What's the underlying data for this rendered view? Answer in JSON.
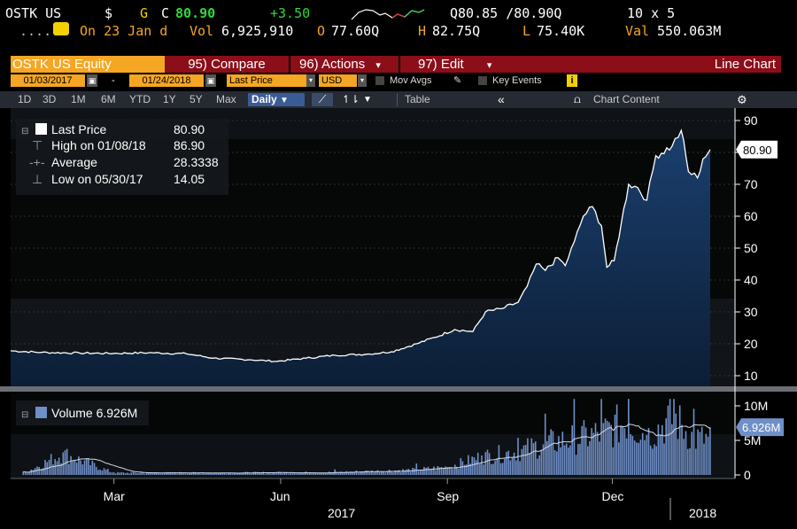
{
  "quote": {
    "ticker": "OSTK US",
    "currency": "$",
    "flag": "G",
    "close_label": "C",
    "close": "80.90",
    "change": "+3.50",
    "bid_ask": "Q80.85 /80.90Q",
    "size": "10 x 5"
  },
  "stats": {
    "prefix": ".....",
    "on_label": "On 23 Jan d",
    "vol_label": "Vol",
    "vol": "6,925,910",
    "open_label": "O",
    "open": "77.60Q",
    "high_label": "H",
    "high": "82.75Q",
    "low_label": "L",
    "low": "75.40K",
    "val_label": "Val",
    "val": "550.063M"
  },
  "menu": {
    "security": "OSTK US Equity",
    "compare": "95) Compare",
    "actions": "96) Actions",
    "edit": "97) Edit",
    "chart_type": "Line Chart"
  },
  "controls": {
    "start_date": "01/03/2017",
    "end_date": "01/24/2018",
    "dash": "-",
    "field": "Last Price",
    "currency": "USD",
    "mov_avgs": "Mov Avgs",
    "key_events": "Key Events"
  },
  "ranges": {
    "items": [
      "1D",
      "3D",
      "1M",
      "6M",
      "YTD",
      "1Y",
      "5Y",
      "Max"
    ],
    "period": "Daily",
    "table": "Table",
    "chart_content": "Chart Content"
  },
  "legend": {
    "last_price_label": "Last Price",
    "last_price_value": "80.90",
    "high_label": "High on 01/08/18",
    "high_value": "86.90",
    "average_label": "Average",
    "average_value": "28.3338",
    "low_label": "Low on 05/30/17",
    "low_value": "14.05",
    "volume_label": "Volume 6.926M"
  },
  "colors": {
    "accent_orange": "#f5a623",
    "menu_red": "#8b0e19",
    "price_line": "#ffffff",
    "volume_bar": "#6f8fc8",
    "change_green": "#2ed93a"
  },
  "chart_data": {
    "type": "line",
    "price": {
      "y_ticks": [
        10,
        20,
        30,
        40,
        50,
        60,
        70,
        80,
        90
      ],
      "last_label": "80.90",
      "points": [
        [
          "2017-01-03",
          17.8
        ],
        [
          "2017-01-20",
          17.3
        ],
        [
          "2017-02-10",
          17.1
        ],
        [
          "2017-03-01",
          17.0
        ],
        [
          "2017-03-20",
          17.2
        ],
        [
          "2017-04-10",
          16.9
        ],
        [
          "2017-04-25",
          15.5
        ],
        [
          "2017-05-15",
          15.0
        ],
        [
          "2017-05-30",
          14.5
        ],
        [
          "2017-06-15",
          15.5
        ],
        [
          "2017-07-01",
          16.4
        ],
        [
          "2017-07-20",
          16.8
        ],
        [
          "2017-08-01",
          17.5
        ],
        [
          "2017-08-15",
          20.0
        ],
        [
          "2017-08-25",
          22.0
        ],
        [
          "2017-09-05",
          24.5
        ],
        [
          "2017-09-15",
          23.8
        ],
        [
          "2017-09-22",
          30.0
        ],
        [
          "2017-10-01",
          31.0
        ],
        [
          "2017-10-10",
          33.0
        ],
        [
          "2017-10-15",
          38.0
        ],
        [
          "2017-10-20",
          45.0
        ],
        [
          "2017-10-25",
          43.0
        ],
        [
          "2017-11-01",
          47.0
        ],
        [
          "2017-11-05",
          44.5
        ],
        [
          "2017-11-10",
          52.0
        ],
        [
          "2017-11-15",
          60.0
        ],
        [
          "2017-11-20",
          63.0
        ],
        [
          "2017-11-25",
          57.0
        ],
        [
          "2017-11-28",
          44.0
        ],
        [
          "2017-12-02",
          46.0
        ],
        [
          "2017-12-06",
          58.0
        ],
        [
          "2017-12-10",
          70.0
        ],
        [
          "2017-12-15",
          69.0
        ],
        [
          "2017-12-20",
          65.0
        ],
        [
          "2017-12-25",
          79.0
        ],
        [
          "2018-01-03",
          82.0
        ],
        [
          "2018-01-08",
          86.9
        ],
        [
          "2018-01-12",
          74.0
        ],
        [
          "2018-01-17",
          72.0
        ],
        [
          "2018-01-20",
          78.0
        ],
        [
          "2018-01-24",
          80.9
        ]
      ]
    },
    "volume": {
      "y_ticks": [
        "0",
        "5M",
        "10M"
      ],
      "last_label": "6.926M",
      "series_name": "Volume 6.926M",
      "points": [
        [
          "2017-01-10",
          0.3
        ],
        [
          "2017-02-01",
          4.1
        ],
        [
          "2017-03-01",
          0.4
        ],
        [
          "2017-05-01",
          0.4
        ],
        [
          "2017-07-01",
          0.5
        ],
        [
          "2017-08-15",
          1.0
        ],
        [
          "2017-09-01",
          1.5
        ],
        [
          "2017-09-20",
          3.5
        ],
        [
          "2017-10-10",
          4.5
        ],
        [
          "2017-10-25",
          6.0
        ],
        [
          "2017-11-10",
          7.0
        ],
        [
          "2017-11-25",
          8.0
        ],
        [
          "2017-12-10",
          10.5
        ],
        [
          "2017-12-20",
          7.5
        ],
        [
          "2018-01-04",
          11.0
        ],
        [
          "2018-01-15",
          7.0
        ],
        [
          "2018-01-24",
          6.9
        ]
      ]
    },
    "x_ticks": [
      "Mar",
      "Jun",
      "Sep",
      "Dec"
    ],
    "year_labels": [
      "2017",
      "2018"
    ],
    "grid": true
  }
}
